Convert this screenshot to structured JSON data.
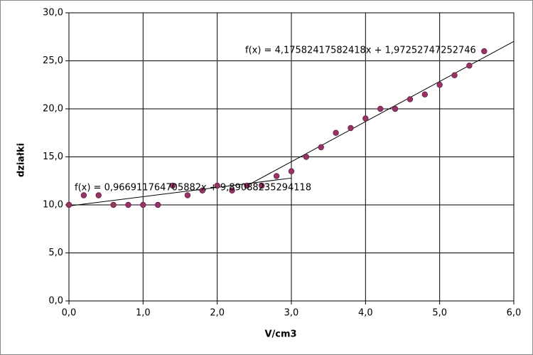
{
  "chart_data": {
    "type": "scatter",
    "x_label": "V/cm3",
    "y_label": "działki",
    "x": [
      0,
      0.2,
      0.4,
      0.6,
      0.8,
      1.0,
      1.2,
      1.4,
      1.6,
      1.8,
      2.0,
      2.2,
      2.4,
      2.6,
      2.8,
      3.0,
      3.2,
      3.4,
      3.6,
      3.8,
      4.0,
      4.2,
      4.4,
      4.6,
      4.8,
      5.0,
      5.2,
      5.4,
      5.6
    ],
    "values": [
      10,
      11,
      11,
      10,
      10,
      10,
      10,
      12,
      11,
      11.5,
      12,
      11.5,
      12,
      12,
      13,
      13.5,
      15,
      16,
      17.5,
      18,
      19,
      20,
      20,
      21,
      21.5,
      22.5,
      23.5,
      24.5,
      26
    ],
    "color": "#993366",
    "xlim": [
      0,
      6
    ],
    "ylim": [
      0,
      30
    ],
    "xticks": [
      {
        "value": 0,
        "label": "0,0"
      },
      {
        "value": 1,
        "label": "1,0"
      },
      {
        "value": 2,
        "label": "2,0"
      },
      {
        "value": 3,
        "label": "3,0"
      },
      {
        "value": 4,
        "label": "4,0"
      },
      {
        "value": 5,
        "label": "5,0"
      },
      {
        "value": 6,
        "label": "6,0"
      }
    ],
    "yticks": [
      {
        "value": 0,
        "label": "0,0"
      },
      {
        "value": 5,
        "label": "5,0"
      },
      {
        "value": 10,
        "label": "10,0"
      },
      {
        "value": 15,
        "label": "15,0"
      },
      {
        "value": 20,
        "label": "20,0"
      },
      {
        "value": 25,
        "label": "25,0"
      },
      {
        "value": 30,
        "label": "30,0"
      }
    ],
    "grid": true,
    "trendlines": [
      {
        "label": "f(x) = 0,966911764705882x + 9,89088235294118",
        "slope": 0.966911764705882,
        "intercept": 9.89088235294118,
        "x_range": [
          0,
          3
        ]
      },
      {
        "label": "f(x) = 4,17582417582418x + 1,97252747252746",
        "slope": 4.17582417582418,
        "intercept": 1.97252747252746,
        "x_range": [
          2.4,
          6
        ]
      }
    ]
  }
}
